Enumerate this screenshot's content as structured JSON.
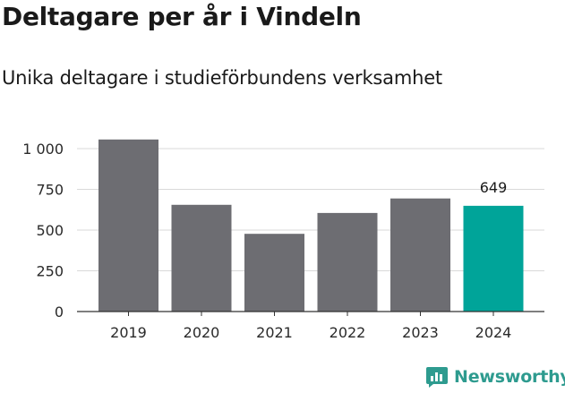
{
  "header": {
    "title": "Deltagare per år i Vindeln",
    "subtitle": "Unika deltagare i studieförbundens verksamhet"
  },
  "branding": {
    "name": "Newsworthy",
    "color": "#2e9b8f"
  },
  "chart_data": {
    "type": "bar",
    "title": "Deltagare per år i Vindeln",
    "subtitle": "Unika deltagare i studieförbundens verksamhet",
    "categories": [
      "2019",
      "2020",
      "2021",
      "2022",
      "2023",
      "2024"
    ],
    "values": [
      1056,
      655,
      477,
      605,
      694,
      649
    ],
    "value_labels": [
      "",
      "",
      "",
      "",
      "",
      "649"
    ],
    "bar_colors": [
      "#6d6d72",
      "#6d6d72",
      "#6d6d72",
      "#6d6d72",
      "#6d6d72",
      "#00a499"
    ],
    "ylim": [
      0,
      1000
    ],
    "yticks": [
      0,
      250,
      500,
      750,
      1000
    ],
    "ytick_labels": [
      "0",
      "250",
      "500",
      "750",
      "1 000"
    ],
    "grid": true,
    "legend": "none"
  }
}
